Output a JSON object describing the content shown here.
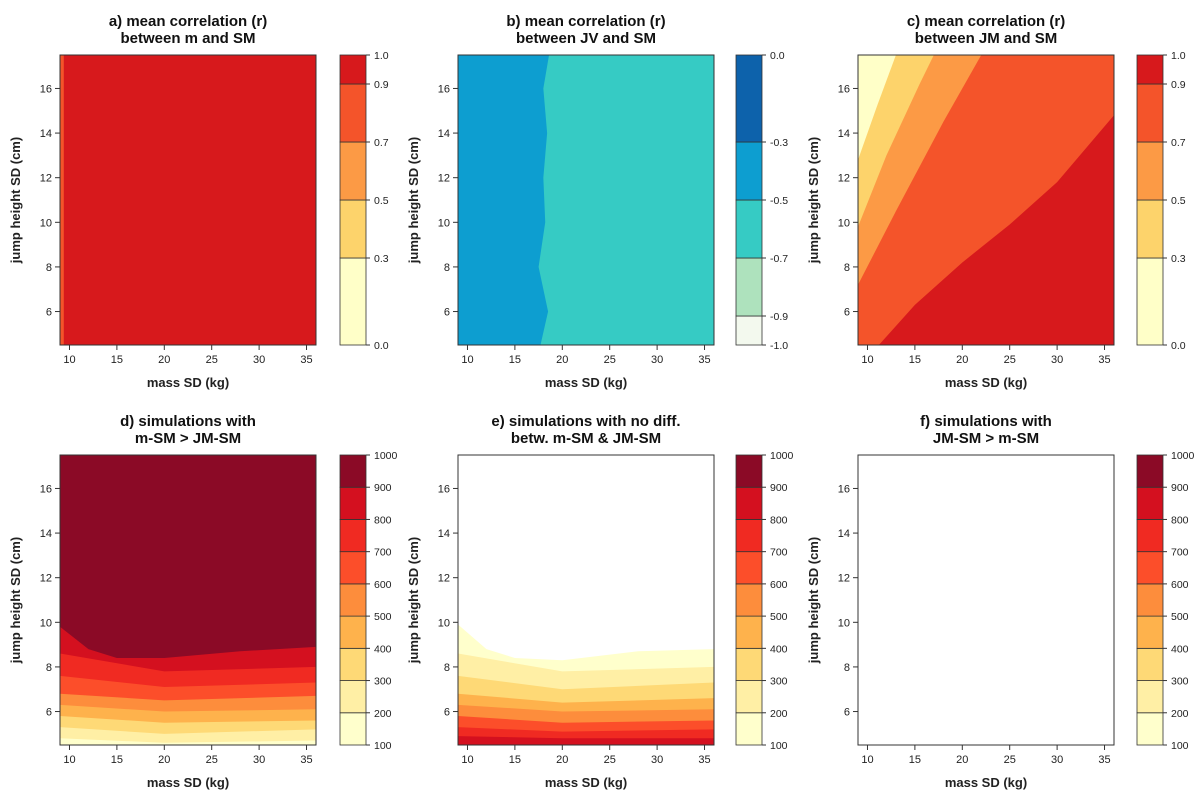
{
  "chart_data": [
    {
      "panel": "a",
      "type": "heatmap",
      "title": [
        "a) mean correlation (r)",
        "between m and SM"
      ],
      "xlabel": "mass SD (kg)",
      "ylabel": "jump height SD (cm)",
      "xlim": [
        9,
        36
      ],
      "ylim": [
        4.5,
        17.5
      ],
      "xticks": [
        10,
        15,
        20,
        25,
        30,
        35
      ],
      "yticks": [
        6,
        8,
        10,
        12,
        14,
        16
      ],
      "colorbar": {
        "levels": [
          0.0,
          0.3,
          0.5,
          0.7,
          0.9,
          1.0
        ],
        "tick_labels": [
          "0.0",
          "0.3",
          "0.5",
          "0.7",
          "0.9",
          "1.0"
        ],
        "colors": [
          "#ffffc8",
          "#fdd36b",
          "#fc9a45",
          "#f4542a",
          "#d7191c"
        ]
      },
      "regions": [
        {
          "value_range": [
            0.9,
            1.0
          ],
          "color": "#d7191c",
          "description": "entire domain except narrow strip at mass SD < 9.4"
        },
        {
          "value_range": [
            0.7,
            0.9
          ],
          "color": "#f4542a",
          "description": "narrow strip at left edge"
        }
      ]
    },
    {
      "panel": "b",
      "type": "heatmap",
      "title": [
        "b) mean correlation (r)",
        "between JV and SM"
      ],
      "xlabel": "mass SD (kg)",
      "ylabel": "jump height SD (cm)",
      "xlim": [
        9,
        36
      ],
      "ylim": [
        4.5,
        17.5
      ],
      "xticks": [
        10,
        15,
        20,
        25,
        30,
        35
      ],
      "yticks": [
        6,
        8,
        10,
        12,
        14,
        16
      ],
      "colorbar": {
        "levels": [
          -1.0,
          -0.9,
          -0.7,
          -0.5,
          -0.3,
          0.0
        ],
        "tick_labels": [
          "-1.0",
          "-0.9",
          "-0.7",
          "-0.5",
          "-0.3",
          "0.0"
        ],
        "colors": [
          "#f3f9ee",
          "#aee2bd",
          "#36cbc4",
          "#0d9ed0",
          "#0d62ab"
        ]
      },
      "regions": [
        {
          "value_range": [
            -0.5,
            -0.3
          ],
          "color": "#0d9ed0",
          "boundary_mass_sd": [
            [
              4.5,
              17.7
            ],
            [
              6,
              18.5
            ],
            [
              8,
              17.5
            ],
            [
              10,
              18.2
            ],
            [
              12,
              18.0
            ],
            [
              14,
              18.4
            ],
            [
              16,
              18.0
            ],
            [
              17.5,
              18.6
            ]
          ]
        },
        {
          "value_range": [
            -0.7,
            -0.5
          ],
          "color": "#36cbc4",
          "description": "mass SD above boundary"
        }
      ]
    },
    {
      "panel": "c",
      "type": "heatmap",
      "title": [
        "c) mean correlation (r)",
        "between JM and SM"
      ],
      "xlabel": "mass SD (kg)",
      "ylabel": "jump height SD (cm)",
      "xlim": [
        9,
        36
      ],
      "ylim": [
        4.5,
        17.5
      ],
      "xticks": [
        10,
        15,
        20,
        25,
        30,
        35
      ],
      "yticks": [
        6,
        8,
        10,
        12,
        14,
        16
      ],
      "colorbar": {
        "levels": [
          0.0,
          0.3,
          0.5,
          0.7,
          0.9,
          1.0
        ],
        "tick_labels": [
          "0.0",
          "0.3",
          "0.5",
          "0.7",
          "0.9",
          "1.0"
        ],
        "colors": [
          "#ffffc8",
          "#fdd36b",
          "#fc9a45",
          "#f4542a",
          "#d7191c"
        ]
      },
      "contours": [
        {
          "level": 0.3,
          "points": [
            [
              9,
              12.8
            ],
            [
              11,
              15.2
            ],
            [
              13,
              17.5
            ]
          ]
        },
        {
          "level": 0.5,
          "points": [
            [
              9,
              9.8
            ],
            [
              12,
              13.0
            ],
            [
              15.5,
              16.2
            ],
            [
              17,
              17.5
            ]
          ]
        },
        {
          "level": 0.7,
          "points": [
            [
              9,
              7.2
            ],
            [
              13,
              10.5
            ],
            [
              18,
              14.5
            ],
            [
              22,
              17.5
            ]
          ]
        },
        {
          "level": 0.9,
          "points": [
            [
              11.2,
              4.5
            ],
            [
              15,
              6.3
            ],
            [
              20,
              8.2
            ],
            [
              25,
              9.9
            ],
            [
              30,
              11.8
            ],
            [
              36,
              14.8
            ]
          ]
        }
      ]
    },
    {
      "panel": "d",
      "type": "heatmap",
      "title": [
        "d) simulations with",
        "m-SM > JM-SM"
      ],
      "xlabel": "mass SD (kg)",
      "ylabel": "jump height SD (cm)",
      "xlim": [
        9,
        36
      ],
      "ylim": [
        4.5,
        17.5
      ],
      "xticks": [
        10,
        15,
        20,
        25,
        30,
        35
      ],
      "yticks": [
        6,
        8,
        10,
        12,
        14,
        16
      ],
      "colorbar": {
        "levels": [
          100,
          200,
          300,
          400,
          500,
          600,
          700,
          800,
          900,
          1000
        ],
        "tick_labels": [
          "100",
          "200",
          "300",
          "400",
          "500",
          "600",
          "700",
          "800",
          "900",
          "1000"
        ],
        "colors": [
          "#ffffcc",
          "#ffefa5",
          "#fed976",
          "#feb24c",
          "#fd8d3c",
          "#fc4e2a",
          "#f02a22",
          "#d4101f",
          "#8b0a26"
        ]
      },
      "contours": [
        {
          "level": 200,
          "points": [
            [
              9,
              4.8
            ],
            [
              20,
              4.6
            ],
            [
              36,
              4.7
            ]
          ]
        },
        {
          "level": 300,
          "points": [
            [
              9,
              5.3
            ],
            [
              20,
              5.0
            ],
            [
              36,
              5.2
            ]
          ]
        },
        {
          "level": 400,
          "points": [
            [
              9,
              5.8
            ],
            [
              20,
              5.5
            ],
            [
              36,
              5.6
            ]
          ]
        },
        {
          "level": 500,
          "points": [
            [
              9,
              6.3
            ],
            [
              20,
              6.0
            ],
            [
              36,
              6.1
            ]
          ]
        },
        {
          "level": 600,
          "points": [
            [
              9,
              6.8
            ],
            [
              20,
              6.5
            ],
            [
              36,
              6.7
            ]
          ]
        },
        {
          "level": 700,
          "points": [
            [
              9,
              7.6
            ],
            [
              20,
              7.1
            ],
            [
              36,
              7.3
            ]
          ]
        },
        {
          "level": 800,
          "points": [
            [
              9,
              8.6
            ],
            [
              20,
              7.8
            ],
            [
              36,
              8.0
            ]
          ]
        },
        {
          "level": 900,
          "points": [
            [
              9,
              9.8
            ],
            [
              12,
              8.8
            ],
            [
              15,
              8.4
            ],
            [
              20,
              8.4
            ],
            [
              28,
              8.7
            ],
            [
              36,
              8.9
            ]
          ]
        }
      ]
    },
    {
      "panel": "e",
      "type": "heatmap",
      "title": [
        "e) simulations with no diff.",
        "betw. m-SM & JM-SM"
      ],
      "xlabel": "mass SD (kg)",
      "ylabel": "jump height SD (cm)",
      "xlim": [
        9,
        36
      ],
      "ylim": [
        4.5,
        17.5
      ],
      "xticks": [
        10,
        15,
        20,
        25,
        30,
        35
      ],
      "yticks": [
        6,
        8,
        10,
        12,
        14,
        16
      ],
      "colorbar": {
        "levels": [
          100,
          200,
          300,
          400,
          500,
          600,
          700,
          800,
          900,
          1000
        ],
        "tick_labels": [
          "100",
          "200",
          "300",
          "400",
          "500",
          "600",
          "700",
          "800",
          "900",
          "1000"
        ],
        "colors": [
          "#ffffcc",
          "#ffefa5",
          "#fed976",
          "#feb24c",
          "#fd8d3c",
          "#fc4e2a",
          "#f02a22",
          "#d4101f",
          "#8b0a26"
        ]
      },
      "contours": [
        {
          "level": 100,
          "points": [
            [
              9,
              9.9
            ],
            [
              12,
              8.8
            ],
            [
              15,
              8.4
            ],
            [
              20,
              8.3
            ],
            [
              28,
              8.7
            ],
            [
              36,
              8.8
            ]
          ]
        },
        {
          "level": 200,
          "points": [
            [
              9,
              8.6
            ],
            [
              20,
              7.8
            ],
            [
              36,
              8.0
            ]
          ]
        },
        {
          "level": 300,
          "points": [
            [
              9,
              7.6
            ],
            [
              20,
              7.0
            ],
            [
              36,
              7.3
            ]
          ]
        },
        {
          "level": 400,
          "points": [
            [
              9,
              6.8
            ],
            [
              20,
              6.4
            ],
            [
              36,
              6.6
            ]
          ]
        },
        {
          "level": 500,
          "points": [
            [
              9,
              6.3
            ],
            [
              20,
              6.0
            ],
            [
              36,
              6.1
            ]
          ]
        },
        {
          "level": 600,
          "points": [
            [
              9,
              5.8
            ],
            [
              20,
              5.5
            ],
            [
              36,
              5.6
            ]
          ]
        },
        {
          "level": 700,
          "points": [
            [
              9,
              5.3
            ],
            [
              20,
              5.1
            ],
            [
              36,
              5.2
            ]
          ]
        },
        {
          "level": 800,
          "points": [
            [
              9,
              4.9
            ],
            [
              20,
              4.8
            ],
            [
              36,
              4.8
            ]
          ]
        }
      ]
    },
    {
      "panel": "f",
      "type": "heatmap",
      "title": [
        "f) simulations with",
        "JM-SM > m-SM"
      ],
      "xlabel": "mass SD (kg)",
      "ylabel": "jump height SD (cm)",
      "xlim": [
        9,
        36
      ],
      "ylim": [
        4.5,
        17.5
      ],
      "xticks": [
        10,
        15,
        20,
        25,
        30,
        35
      ],
      "yticks": [
        6,
        8,
        10,
        12,
        14,
        16
      ],
      "colorbar": {
        "levels": [
          100,
          200,
          300,
          400,
          500,
          600,
          700,
          800,
          900,
          1000
        ],
        "tick_labels": [
          "100",
          "200",
          "300",
          "400",
          "500",
          "600",
          "700",
          "800",
          "900",
          "1000"
        ],
        "colors": [
          "#ffffcc",
          "#ffefa5",
          "#fed976",
          "#feb24c",
          "#fd8d3c",
          "#fc4e2a",
          "#f02a22",
          "#d4101f",
          "#8b0a26"
        ]
      },
      "contours": []
    }
  ]
}
